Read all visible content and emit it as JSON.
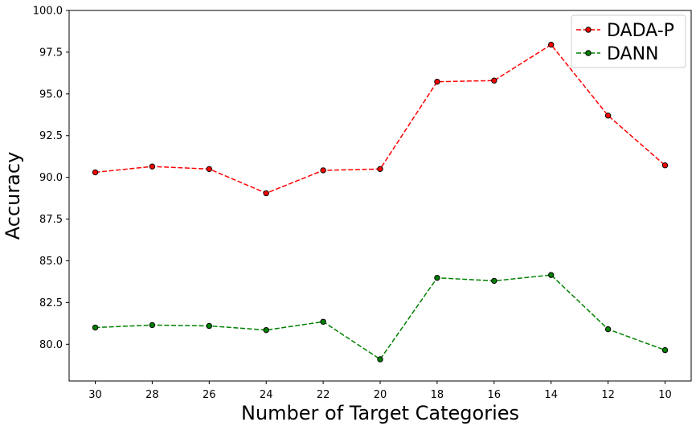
{
  "chart_data": {
    "type": "line",
    "title": "",
    "xlabel": "Number of Target Categories",
    "ylabel": "Accuracy",
    "x": [
      30,
      28,
      26,
      24,
      22,
      20,
      18,
      16,
      14,
      12,
      10
    ],
    "x_tick_labels": [
      "30",
      "28",
      "26",
      "24",
      "22",
      "20",
      "18",
      "16",
      "14",
      "12",
      "10"
    ],
    "x_direction": "descending",
    "ylim": [
      77.8,
      100.0
    ],
    "y_ticks": [
      80.0,
      82.5,
      85.0,
      87.5,
      90.0,
      92.5,
      95.0,
      97.5,
      100.0
    ],
    "y_tick_labels": [
      "80.0",
      "82.5",
      "85.0",
      "87.5",
      "90.0",
      "92.5",
      "95.0",
      "97.5",
      "100.0"
    ],
    "grid": false,
    "legend_position": "top-right",
    "series": [
      {
        "name": "DADA-P",
        "color": "#ff0000",
        "line_style": "dashed",
        "marker": "circle",
        "values": [
          90.3,
          90.65,
          90.5,
          89.05,
          90.42,
          90.5,
          95.73,
          95.8,
          97.95,
          93.7,
          90.72
        ]
      },
      {
        "name": "DANN",
        "color": "#008000",
        "line_style": "dashed",
        "marker": "circle",
        "values": [
          81.0,
          81.15,
          81.1,
          80.85,
          81.35,
          79.1,
          83.98,
          83.8,
          84.15,
          80.9,
          79.65
        ]
      }
    ]
  }
}
